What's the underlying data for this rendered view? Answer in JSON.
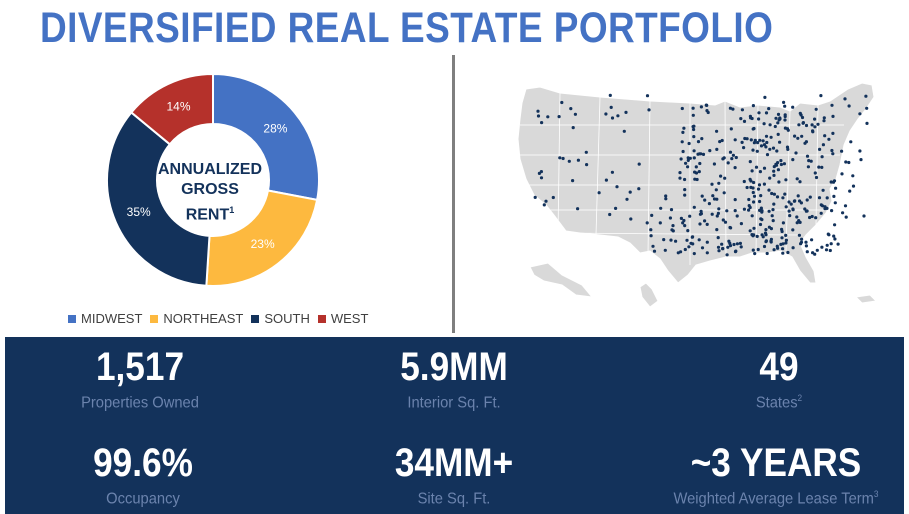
{
  "title": "DIVERSIFIED REAL ESTATE PORTFOLIO",
  "donut": {
    "center_line1": "ANNUALIZED",
    "center_line2": "GROSS RENT",
    "center_sup": "1"
  },
  "chart_data": {
    "type": "pie",
    "categories": [
      "MIDWEST",
      "NORTHEAST",
      "SOUTH",
      "WEST"
    ],
    "values": [
      28,
      23,
      35,
      14
    ],
    "labels": [
      "28%",
      "23%",
      "35%",
      "14%"
    ],
    "colors": [
      "#4472c4",
      "#fdb93f",
      "#13325b",
      "#b5312b"
    ],
    "legend_position": "bottom"
  },
  "stats": [
    {
      "value": "1,517",
      "label": "Properties Owned",
      "sup": ""
    },
    {
      "value": "5.9MM",
      "label": "Interior Sq. Ft.",
      "sup": ""
    },
    {
      "value": "49",
      "label": "States",
      "sup": "2"
    },
    {
      "value": "99.6%",
      "label": "Occupancy",
      "sup": ""
    },
    {
      "value": "34MM+",
      "label": "Site Sq. Ft.",
      "sup": ""
    },
    {
      "value": "~3 YEARS",
      "label": "Weighted Average Lease Term",
      "sup": "3"
    }
  ],
  "colors": {
    "brand_blue": "#4472c4",
    "navy": "#13325b",
    "gold": "#fdb93f",
    "red": "#b5312b",
    "map_fill": "#d9d9d9"
  }
}
